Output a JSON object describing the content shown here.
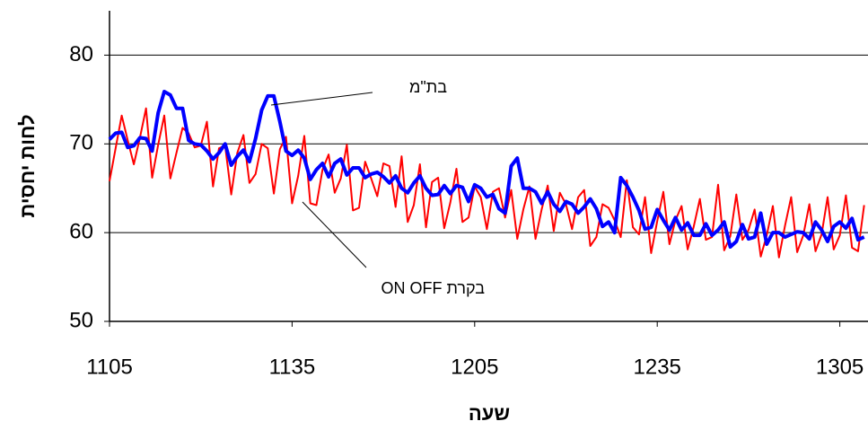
{
  "chart_data": {
    "type": "line",
    "y_label": "לחות יחסית",
    "x_label": "שעה",
    "categories": [
      "1105",
      null,
      null,
      null,
      null,
      null,
      null,
      null,
      null,
      null,
      null,
      null,
      null,
      null,
      null,
      null,
      null,
      null,
      null,
      null,
      null,
      null,
      null,
      null,
      null,
      null,
      null,
      null,
      null,
      null,
      "1135",
      null,
      null,
      null,
      null,
      null,
      null,
      null,
      null,
      null,
      null,
      null,
      null,
      null,
      null,
      null,
      null,
      null,
      null,
      null,
      null,
      null,
      null,
      null,
      null,
      null,
      null,
      null,
      null,
      null,
      "1205",
      null,
      null,
      null,
      null,
      null,
      null,
      null,
      null,
      null,
      null,
      null,
      null,
      null,
      null,
      null,
      null,
      null,
      null,
      null,
      null,
      null,
      null,
      null,
      null,
      null,
      null,
      null,
      null,
      null,
      "1235",
      null,
      null,
      null,
      null,
      null,
      null,
      null,
      null,
      null,
      null,
      null,
      null,
      null,
      null,
      null,
      null,
      null,
      null,
      null,
      null,
      null,
      null,
      null,
      null,
      null,
      null,
      null,
      null,
      null,
      "1305",
      null,
      null,
      null,
      null
    ],
    "series": [
      {
        "name": "בת\"מ",
        "color": "#0000ff",
        "width": 4,
        "values": [
          70.5,
          71.2,
          71.3,
          69.6,
          69.8,
          70.7,
          70.6,
          69.2,
          73.5,
          75.9,
          75.5,
          74.0,
          74.0,
          70.4,
          70.0,
          69.9,
          69.2,
          68.3,
          69.0,
          70.0,
          67.6,
          68.6,
          69.3,
          68.0,
          70.6,
          73.8,
          75.4,
          75.4,
          72.5,
          69.2,
          68.7,
          69.3,
          68.4,
          66.0,
          67.1,
          67.8,
          66.3,
          67.8,
          68.3,
          66.5,
          67.3,
          67.3,
          66.2,
          66.6,
          66.8,
          66.3,
          65.6,
          66.4,
          65.0,
          64.5,
          65.6,
          66.4,
          65.0,
          64.2,
          64.3,
          65.3,
          64.4,
          65.3,
          65.1,
          63.5,
          65.4,
          65.0,
          64.0,
          64.3,
          62.7,
          62.2,
          67.5,
          68.4,
          65.0,
          65.0,
          64.6,
          63.3,
          64.6,
          63.2,
          62.4,
          63.5,
          63.2,
          62.2,
          62.9,
          63.8,
          62.7,
          60.7,
          61.2,
          60.0,
          66.2,
          65.3,
          64.0,
          62.5,
          60.4,
          60.6,
          62.6,
          61.4,
          60.3,
          61.7,
          60.3,
          61.1,
          59.7,
          59.7,
          61.0,
          59.7,
          60.3,
          61.2,
          58.4,
          59.0,
          60.9,
          59.3,
          59.5,
          62.2,
          58.7,
          60.0,
          60.0,
          59.5,
          59.8,
          60.1,
          60.0,
          59.3,
          61.2,
          60.3,
          59.0,
          60.7,
          61.2,
          60.5,
          61.6,
          59.2,
          59.5
        ]
      },
      {
        "name": "בקרת ON OFF",
        "color": "#ff0000",
        "width": 2,
        "values": [
          65.8,
          69.5,
          73.2,
          70.4,
          67.7,
          70.7,
          74.0,
          66.2,
          69.9,
          73.2,
          66.1,
          69.0,
          71.8,
          71.2,
          69.6,
          69.8,
          72.5,
          65.2,
          69.5,
          69.8,
          64.3,
          69.0,
          71.0,
          65.6,
          66.6,
          70.0,
          69.5,
          64.4,
          69.4,
          70.8,
          63.3,
          66.4,
          70.9,
          63.3,
          63.1,
          67.1,
          68.8,
          64.5,
          66.1,
          69.9,
          62.5,
          62.8,
          68.0,
          66.1,
          64.1,
          67.8,
          67.5,
          62.9,
          68.6,
          61.2,
          63.1,
          67.7,
          60.6,
          65.7,
          66.2,
          60.5,
          63.4,
          67.2,
          61.2,
          61.7,
          65.2,
          64.0,
          60.4,
          64.6,
          65.0,
          61.7,
          64.8,
          59.3,
          62.6,
          65.2,
          59.3,
          62.6,
          65.3,
          60.2,
          64.5,
          63.2,
          60.4,
          64.0,
          64.8,
          58.5,
          59.5,
          63.2,
          62.8,
          61.4,
          59.5,
          65.9,
          60.6,
          59.8,
          64.0,
          57.7,
          61.3,
          64.6,
          58.7,
          61.4,
          63.0,
          58.1,
          60.7,
          63.8,
          59.2,
          59.5,
          65.4,
          58.0,
          59.6,
          64.3,
          59.2,
          60.3,
          62.6,
          57.3,
          59.7,
          63.0,
          57.2,
          60.8,
          64.0,
          57.8,
          59.7,
          63.2,
          57.9,
          59.8,
          64.0,
          58.1,
          59.7,
          64.2,
          58.3,
          57.9,
          63.1
        ]
      }
    ],
    "ylim": [
      50,
      85
    ],
    "yticks": [
      50,
      60,
      70,
      80
    ],
    "grid": true
  }
}
